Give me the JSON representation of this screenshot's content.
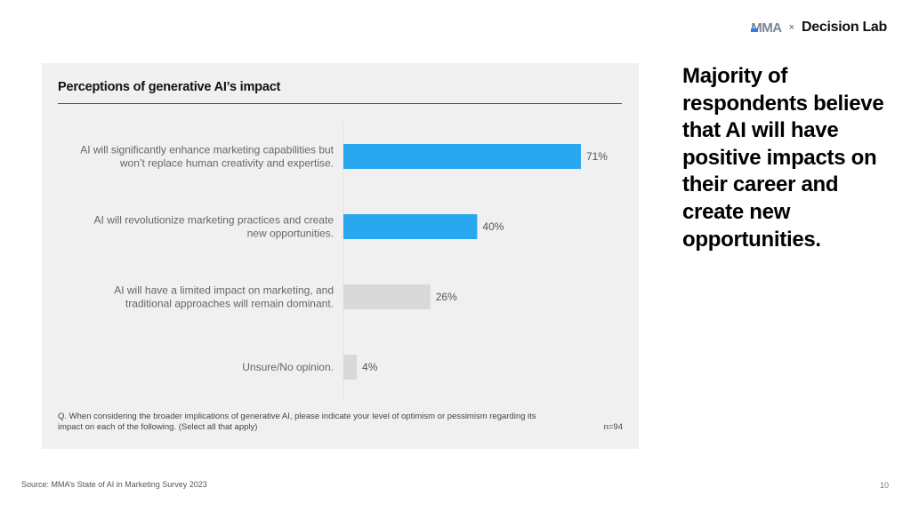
{
  "logo": {
    "brand1": "MMA",
    "separator": "×",
    "brand2": "Decision Lab"
  },
  "headline": "Majority of respondents believe that AI will have positive impacts on their career and create new opportunities.",
  "chart_data": {
    "type": "bar",
    "orientation": "horizontal",
    "title": "Perceptions of generative AI’s impact",
    "categories": [
      [
        "AI will significantly enhance marketing capabilities but",
        "won’t replace human creativity and expertise."
      ],
      [
        "AI will revolutionize marketing practices and create",
        "new opportunities."
      ],
      [
        "AI will have a limited impact on marketing, and",
        "traditional approaches will remain dominant."
      ],
      [
        "Unsure/No opinion."
      ]
    ],
    "values": [
      71,
      40,
      26,
      4
    ],
    "value_labels": [
      "71%",
      "40%",
      "26%",
      "4%"
    ],
    "bar_colors": [
      "#29a8ef",
      "#29a8ef",
      "#d9d9d9",
      "#d9d9d9"
    ],
    "xlim": [
      0,
      100
    ],
    "xlabel": "",
    "ylabel": ""
  },
  "question": "Q. When considering the broader implications of generative AI, please indicate your level of optimism or pessimism regarding its impact on each of the following. (Select all that apply)",
  "sample": "n=94",
  "source": "Source: MMA’s State of AI in Marketing Survey 2023",
  "page_number": "10"
}
